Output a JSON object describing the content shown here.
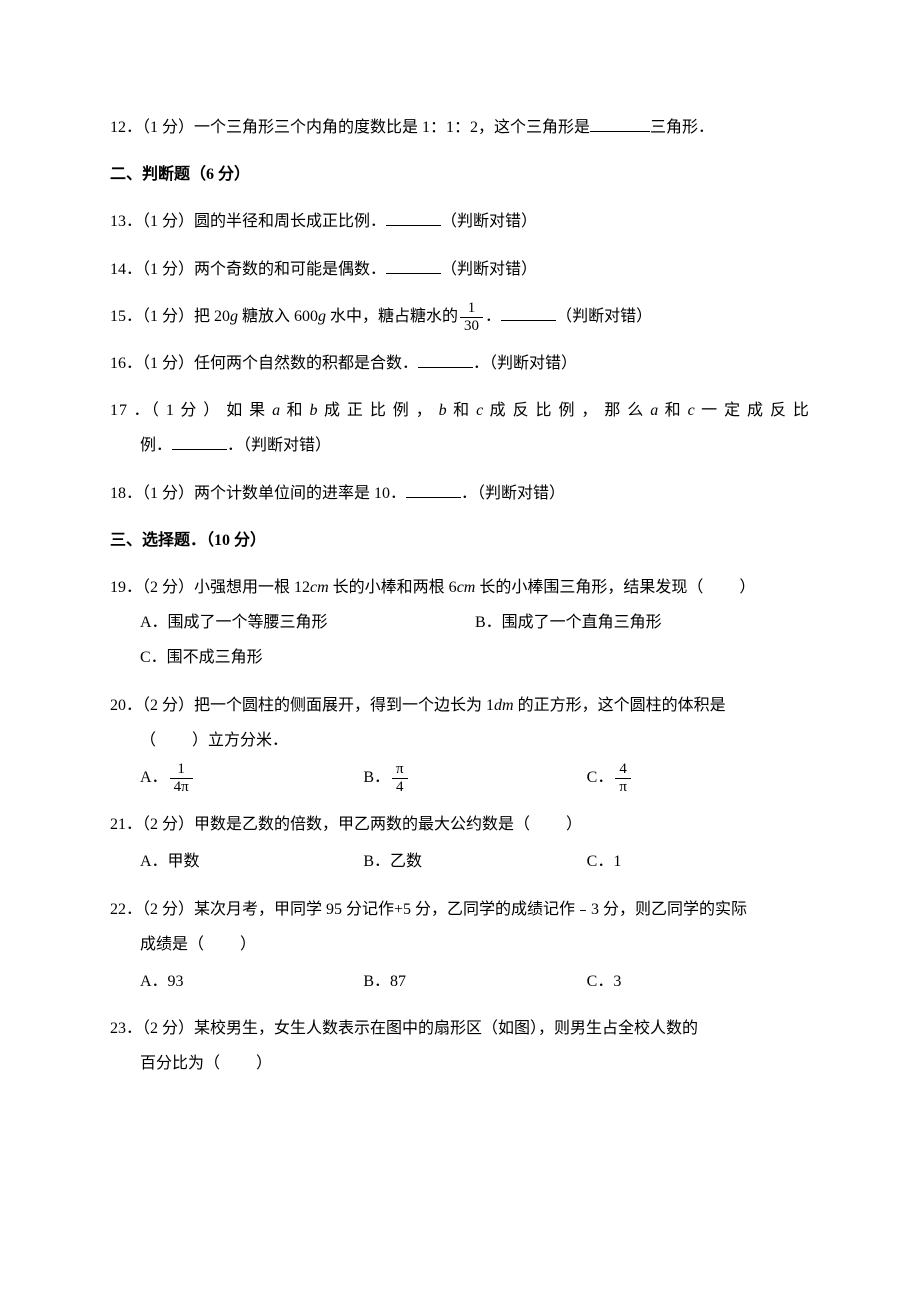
{
  "q12": {
    "text_a": "12．（1 分）一个三角形三个内角的度数比是 1：1：2，这个三角形是",
    "text_b": "三角形．"
  },
  "section2": "二、判断题（6 分）",
  "q13": {
    "text_a": "13．（1 分）圆的半径和周长成正比例．",
    "text_b": "（判断对错）"
  },
  "q14": {
    "text_a": "14．（1 分）两个奇数的和可能是偶数．",
    "text_b": "（判断对错）"
  },
  "q15": {
    "text_a": "15．（1 分）把 20",
    "text_b": " 糖放入 600",
    "text_c": " 水中，糖占糖水的",
    "text_d": "．",
    "text_e": "（判断对错）",
    "frac_num": "1",
    "frac_den": "30",
    "unit": "g"
  },
  "q16": {
    "text_a": "16．（1 分）任何两个自然数的积都是合数．",
    "text_b": "．（判断对错）"
  },
  "q17": {
    "text_a": "17 ．（ 1 分 ） 如 果 ",
    "text_b": " 和 ",
    "text_c": " 成 正 比 例 ， ",
    "text_d": " 和 ",
    "text_e": " 成 反 比 例 ， 那 么 ",
    "text_f": " 和 ",
    "text_g": " 一 定 成 反 比",
    "text_h": "例．",
    "text_i": "．（判断对错）",
    "var_a": "a",
    "var_b": "b",
    "var_c": "c"
  },
  "q18": {
    "text_a": "18．（1 分）两个计数单位间的进率是 10．",
    "text_b": "．（判断对错）"
  },
  "section3": "三、选择题．（10 分）",
  "q19": {
    "text_a": "19．（2 分）小强想用一根 12",
    "text_b": " 长的小棒和两根 6",
    "text_c": " 长的小棒围三角形，结果发现（",
    "text_d": "）",
    "unit": "cm",
    "opt_a": "A．围成了一个等腰三角形",
    "opt_b": "B．围成了一个直角三角形",
    "opt_c": "C．围不成三角形"
  },
  "q20": {
    "text_a": "20．（2 分）把一个圆柱的侧面展开，得到一个边长为 1",
    "text_b": " 的正方形，这个圆柱的体积是",
    "text_c": "（",
    "text_d": "）立方分米．",
    "unit": "dm",
    "opt_a_label": "A．",
    "opt_b_label": "B．",
    "opt_c_label": "C．",
    "a_num": "1",
    "a_den": "4π",
    "b_num": "π",
    "b_den": "4",
    "c_num": "4",
    "c_den": "π"
  },
  "q21": {
    "text_a": "21．（2 分）甲数是乙数的倍数，甲乙两数的最大公约数是（",
    "text_b": "）",
    "opt_a": "A．甲数",
    "opt_b": "B．乙数",
    "opt_c": "C．1"
  },
  "q22": {
    "text_a": "22．（2 分）某次月考，甲同学 95 分记作+5 分，乙同学的成绩记作﹣3 分，则乙同学的实际",
    "text_b": "成绩是（",
    "text_c": "）",
    "opt_a": "A．93",
    "opt_b": "B．87",
    "opt_c": "C．3"
  },
  "q23": {
    "text_a": "23．（2 分）某校男生，女生人数表示在图中的扇形区（如图），则男生占全校人数的",
    "text_b": "百分比为（",
    "text_c": "）"
  }
}
